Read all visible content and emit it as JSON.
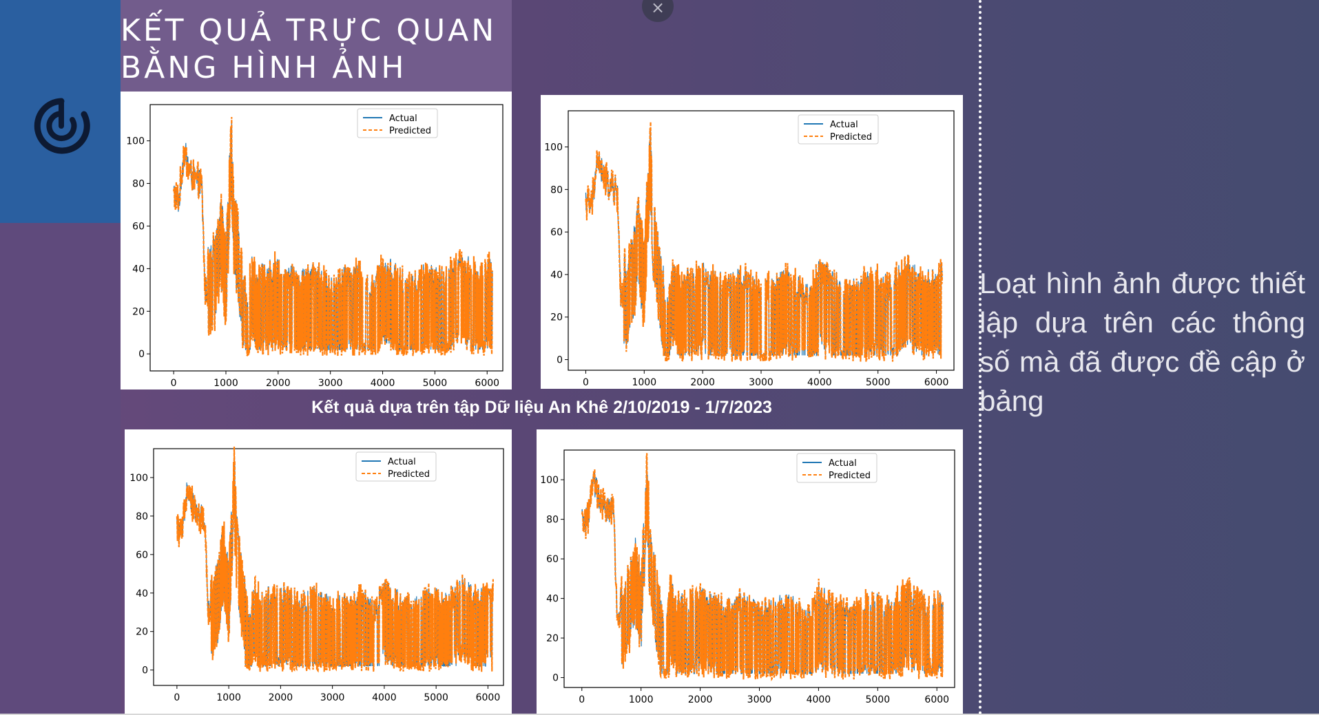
{
  "slide": {
    "title_line1": "KẾT QUẢ TRỰC QUAN",
    "title_line2": "BẰNG HÌNH ẢNH",
    "caption": "Kết quả dựa trên tập  Dữ liệu An Khê 2/10/2019 - 1/7/2023",
    "side_text": "Loạt hình ảnh được thiết lập dựa trên các thông số mà đã được đề cập ở bảng",
    "close_label": "×",
    "colors": {
      "actual": "#1f77b4",
      "predicted": "#ff7f0e"
    }
  },
  "chart_data": [
    {
      "type": "line",
      "xlim": [
        -450,
        6300
      ],
      "ylim": [
        -8,
        117
      ],
      "xticks": [
        0,
        1000,
        2000,
        3000,
        4000,
        5000,
        6000
      ],
      "yticks": [
        0,
        20,
        40,
        60,
        80,
        100
      ],
      "legend": "top-right",
      "series_names": [
        "Actual",
        "Predicted"
      ],
      "series": [
        {
          "name": "Actual",
          "x": [
            0,
            100,
            200,
            300,
            400,
            500,
            540,
            600,
            700,
            800,
            900,
            1000,
            1100,
            1150,
            1300,
            1400,
            1500,
            1600,
            2000,
            2400,
            2700,
            3000,
            3500,
            3800,
            4000,
            4500,
            4900,
            5200,
            5500,
            5800,
            6100
          ],
          "y": [
            75,
            72,
            95,
            86,
            82,
            80,
            78,
            30,
            28,
            36,
            55,
            34,
            95,
            62,
            28,
            8,
            30,
            20,
            24,
            18,
            22,
            16,
            22,
            14,
            26,
            16,
            22,
            18,
            28,
            20,
            24
          ]
        },
        {
          "name": "Predicted",
          "x": [
            0,
            100,
            200,
            300,
            400,
            500,
            540,
            600,
            700,
            800,
            900,
            1000,
            1100,
            1150,
            1300,
            1400,
            1500,
            1600,
            2000,
            2400,
            2700,
            3000,
            3500,
            3800,
            4000,
            4500,
            4900,
            5200,
            5500,
            5800,
            6100
          ],
          "y": [
            76,
            70,
            96,
            85,
            83,
            81,
            77,
            31,
            27,
            37,
            54,
            35,
            94,
            63,
            29,
            9,
            29,
            21,
            25,
            17,
            23,
            15,
            23,
            15,
            25,
            17,
            21,
            19,
            27,
            21,
            23
          ]
        }
      ]
    },
    {
      "type": "line",
      "xlim": [
        -300,
        6300
      ],
      "ylim": [
        -5,
        117
      ],
      "xticks": [
        0,
        1000,
        2000,
        3000,
        4000,
        5000,
        6000
      ],
      "yticks": [
        0,
        20,
        40,
        60,
        80,
        100
      ],
      "legend": "top-right",
      "series_names": [
        "Actual",
        "Predicted"
      ],
      "series": [
        {
          "name": "Actual",
          "x": [
            0,
            100,
            200,
            300,
            400,
            500,
            540,
            600,
            700,
            800,
            900,
            1000,
            1100,
            1150,
            1300,
            1400,
            1500,
            1600,
            2000,
            2400,
            2700,
            3000,
            3500,
            3800,
            4000,
            4500,
            4900,
            5200,
            5500,
            5800,
            6100
          ],
          "y": [
            75,
            72,
            95,
            86,
            82,
            80,
            78,
            30,
            28,
            36,
            55,
            34,
            95,
            60,
            28,
            8,
            30,
            20,
            24,
            18,
            22,
            16,
            22,
            14,
            26,
            16,
            22,
            18,
            28,
            20,
            24
          ]
        },
        {
          "name": "Predicted",
          "x": [
            0,
            100,
            200,
            300,
            400,
            500,
            540,
            600,
            700,
            800,
            900,
            1000,
            1100,
            1150,
            1300,
            1400,
            1500,
            1600,
            2000,
            2400,
            2700,
            3000,
            3500,
            3800,
            4000,
            4500,
            4900,
            5200,
            5500,
            5800,
            6100
          ],
          "y": [
            76,
            70,
            96,
            85,
            83,
            81,
            77,
            31,
            27,
            37,
            54,
            35,
            94,
            61,
            29,
            9,
            29,
            21,
            25,
            17,
            23,
            15,
            23,
            15,
            25,
            17,
            21,
            19,
            27,
            21,
            23
          ]
        }
      ]
    },
    {
      "type": "line",
      "xlim": [
        -450,
        6300
      ],
      "ylim": [
        -8,
        115
      ],
      "xticks": [
        0,
        1000,
        2000,
        3000,
        4000,
        5000,
        6000
      ],
      "yticks": [
        0,
        20,
        40,
        60,
        80,
        100
      ],
      "legend": "top-right",
      "series_names": [
        "Actual",
        "Predicted"
      ],
      "series": [
        {
          "name": "Actual",
          "x": [
            0,
            100,
            200,
            300,
            400,
            500,
            540,
            600,
            700,
            800,
            900,
            1000,
            1100,
            1150,
            1300,
            1400,
            1500,
            1600,
            2000,
            2400,
            2700,
            3000,
            3500,
            3800,
            4000,
            4500,
            4900,
            5200,
            5500,
            5800,
            6100
          ],
          "y": [
            74,
            70,
            97,
            86,
            80,
            79,
            75,
            30,
            28,
            36,
            58,
            34,
            96,
            60,
            28,
            8,
            30,
            20,
            24,
            18,
            22,
            16,
            22,
            14,
            26,
            16,
            22,
            18,
            28,
            20,
            24
          ]
        },
        {
          "name": "Predicted",
          "x": [
            0,
            100,
            200,
            300,
            400,
            500,
            540,
            600,
            700,
            800,
            900,
            1000,
            1100,
            1150,
            1300,
            1400,
            1500,
            1600,
            2000,
            2400,
            2700,
            3000,
            3500,
            3800,
            4000,
            4500,
            4900,
            5200,
            5500,
            5800,
            6100
          ],
          "y": [
            75,
            69,
            98,
            85,
            81,
            80,
            74,
            31,
            27,
            37,
            57,
            35,
            95,
            61,
            29,
            9,
            29,
            21,
            25,
            17,
            23,
            15,
            23,
            15,
            25,
            17,
            21,
            19,
            27,
            21,
            23
          ]
        }
      ]
    },
    {
      "type": "line",
      "xlim": [
        -300,
        6300
      ],
      "ylim": [
        -5,
        115
      ],
      "xticks": [
        0,
        1000,
        2000,
        3000,
        4000,
        5000,
        6000
      ],
      "yticks": [
        0,
        20,
        40,
        60,
        80,
        100
      ],
      "legend": "top-right",
      "series_names": [
        "Actual",
        "Predicted"
      ],
      "series": [
        {
          "name": "Actual",
          "x": [
            0,
            100,
            200,
            300,
            400,
            500,
            540,
            600,
            700,
            800,
            900,
            1000,
            1100,
            1150,
            1300,
            1400,
            1500,
            1600,
            2000,
            2400,
            2700,
            3000,
            3500,
            3800,
            4000,
            4500,
            4900,
            5200,
            5500,
            5800,
            6100
          ],
          "y": [
            78,
            80,
            100,
            88,
            86,
            84,
            82,
            30,
            28,
            36,
            50,
            34,
            98,
            58,
            28,
            6,
            30,
            20,
            24,
            18,
            22,
            16,
            22,
            14,
            26,
            16,
            22,
            18,
            28,
            20,
            24
          ]
        },
        {
          "name": "Predicted",
          "x": [
            0,
            100,
            200,
            300,
            400,
            500,
            540,
            600,
            700,
            800,
            900,
            1000,
            1100,
            1150,
            1300,
            1400,
            1500,
            1600,
            2000,
            2400,
            2700,
            3000,
            3500,
            3800,
            4000,
            4500,
            4900,
            5200,
            5500,
            5800,
            6100
          ],
          "y": [
            79,
            79,
            101,
            87,
            87,
            85,
            81,
            31,
            27,
            37,
            49,
            35,
            97,
            59,
            29,
            7,
            29,
            21,
            25,
            17,
            23,
            15,
            23,
            15,
            25,
            17,
            21,
            19,
            27,
            21,
            23
          ]
        }
      ]
    }
  ]
}
